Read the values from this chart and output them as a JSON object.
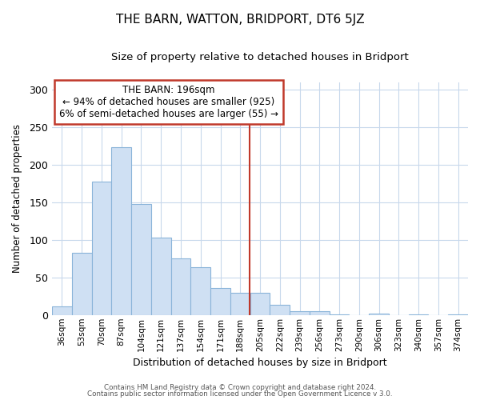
{
  "title": "THE BARN, WATTON, BRIDPORT, DT6 5JZ",
  "subtitle": "Size of property relative to detached houses in Bridport",
  "xlabel": "Distribution of detached houses by size in Bridport",
  "ylabel": "Number of detached properties",
  "bar_labels": [
    "36sqm",
    "53sqm",
    "70sqm",
    "87sqm",
    "104sqm",
    "121sqm",
    "137sqm",
    "154sqm",
    "171sqm",
    "188sqm",
    "205sqm",
    "222sqm",
    "239sqm",
    "256sqm",
    "273sqm",
    "290sqm",
    "306sqm",
    "323sqm",
    "340sqm",
    "357sqm",
    "374sqm"
  ],
  "bar_values": [
    11,
    83,
    178,
    224,
    148,
    103,
    75,
    64,
    36,
    30,
    30,
    14,
    5,
    5,
    1,
    0,
    2,
    0,
    1,
    0,
    1
  ],
  "bar_color": "#cfe0f3",
  "bar_edge_color": "#8ab4d9",
  "vline_color": "#c0392b",
  "ylim": [
    0,
    310
  ],
  "yticks": [
    0,
    50,
    100,
    150,
    200,
    250,
    300
  ],
  "annotation_title": "THE BARN: 196sqm",
  "annotation_line1": "← 94% of detached houses are smaller (925)",
  "annotation_line2": "6% of semi-detached houses are larger (55) →",
  "footnote1": "Contains HM Land Registry data © Crown copyright and database right 2024.",
  "footnote2": "Contains public sector information licensed under the Open Government Licence v 3.0."
}
